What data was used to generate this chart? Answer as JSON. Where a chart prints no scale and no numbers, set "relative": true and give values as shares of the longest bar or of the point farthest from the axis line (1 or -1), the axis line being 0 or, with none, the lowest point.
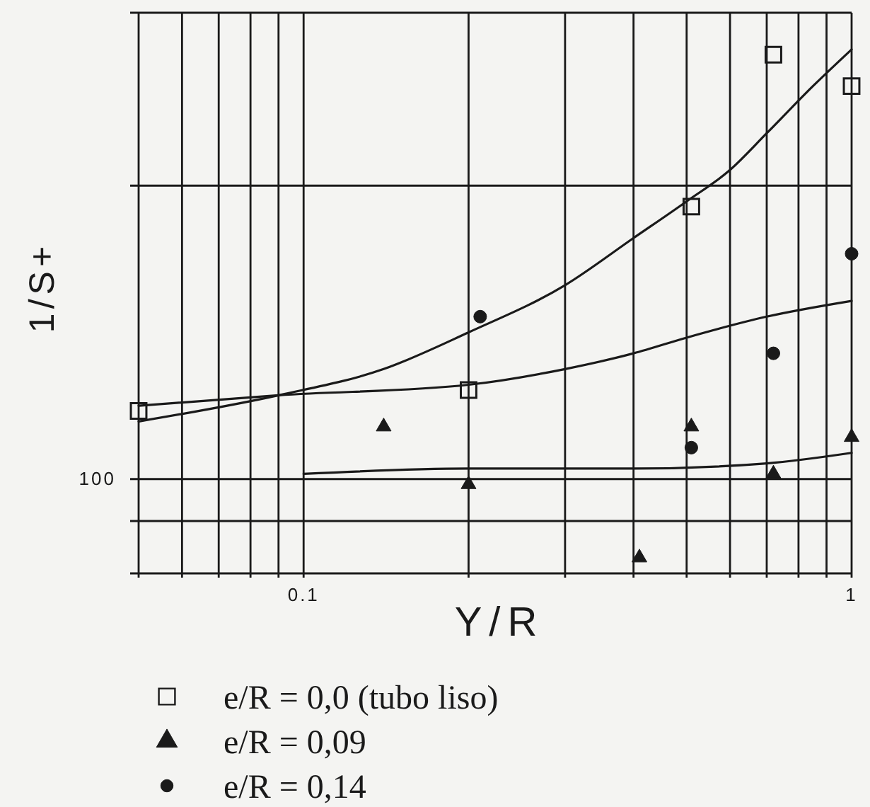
{
  "chart_data": {
    "type": "scatter",
    "xlabel": "Y/R",
    "ylabel": "1/S+",
    "log": "x",
    "grid": "x",
    "legend": "bottom",
    "relative": true,
    "xlim": [
      0.05,
      1
    ],
    "xticks": [
      {
        "value": 0.05,
        "label": null
      },
      {
        "value": 0.06,
        "label": null
      },
      {
        "value": 0.07,
        "label": null
      },
      {
        "value": 0.08,
        "label": null
      },
      {
        "value": 0.09,
        "label": null
      },
      0.1,
      {
        "value": 0.2,
        "label": null
      },
      {
        "value": 0.3,
        "label": null
      },
      {
        "value": 0.4,
        "label": null
      },
      {
        "value": 0.5,
        "label": null
      },
      {
        "value": 0.6,
        "label": null
      },
      {
        "value": 0.7,
        "label": null
      },
      {
        "value": 0.8,
        "label": null
      },
      {
        "value": 0.9,
        "label": null
      },
      1
    ],
    "ref_lines": [
      {
        "axis": "y",
        "value": 0.1,
        "color": "#1a1a1a"
      },
      {
        "axis": "y",
        "value": 0.18,
        "color": "#1a1a1a"
      },
      {
        "axis": "y",
        "value": 0.74,
        "color": "#1a1a1a"
      },
      {
        "axis": "y",
        "value": 1.07,
        "color": "#1a1a1a"
      }
    ],
    "annotations": [
      "100"
    ],
    "series": [
      {
        "type": "line",
        "color": "#1a1a1a",
        "line_style": "solid",
        "x": [
          0.05,
          0.09,
          0.14,
          0.2,
          0.3,
          0.4,
          0.5,
          0.6,
          0.7,
          0.85,
          1
        ],
        "values": [
          0.29,
          0.34,
          0.39,
          0.46,
          0.55,
          0.64,
          0.71,
          0.77,
          0.84,
          0.93,
          1
        ]
      },
      {
        "type": "line",
        "color": "#1a1a1a",
        "line_style": "solid",
        "x": [
          0.05,
          0.09,
          0.2,
          0.3,
          0.4,
          0.5,
          0.7,
          1
        ],
        "values": [
          0.32,
          0.34,
          0.36,
          0.39,
          0.42,
          0.45,
          0.49,
          0.52
        ]
      },
      {
        "type": "line",
        "color": "#1a1a1a",
        "line_style": "solid",
        "x": [
          0.1,
          0.2,
          0.4,
          0.7,
          1
        ],
        "values": [
          0.19,
          0.2,
          0.2,
          0.21,
          0.23
        ]
      },
      {
        "name": "e/R = 0,0 (tubo liso)",
        "color": "#1a1a1a",
        "marker": "square",
        "x": [
          0.05,
          0.2,
          0.51,
          0.72,
          1
        ],
        "values": [
          0.31,
          0.35,
          0.7,
          0.99,
          0.93
        ]
      },
      {
        "name": "e/R = 0,09",
        "color": "#1a1a1a",
        "marker": "triangle",
        "x": [
          0.14,
          0.2,
          0.41,
          0.51,
          0.72,
          1
        ],
        "values": [
          0.28,
          0.17,
          0.03,
          0.28,
          0.19,
          0.26
        ]
      },
      {
        "name": "e/R = 0,14",
        "color": "#1a1a1a",
        "marker": "circle",
        "x": [
          0.21,
          0.51,
          0.72,
          1
        ],
        "values": [
          0.49,
          0.24,
          0.42,
          0.61
        ]
      }
    ]
  }
}
